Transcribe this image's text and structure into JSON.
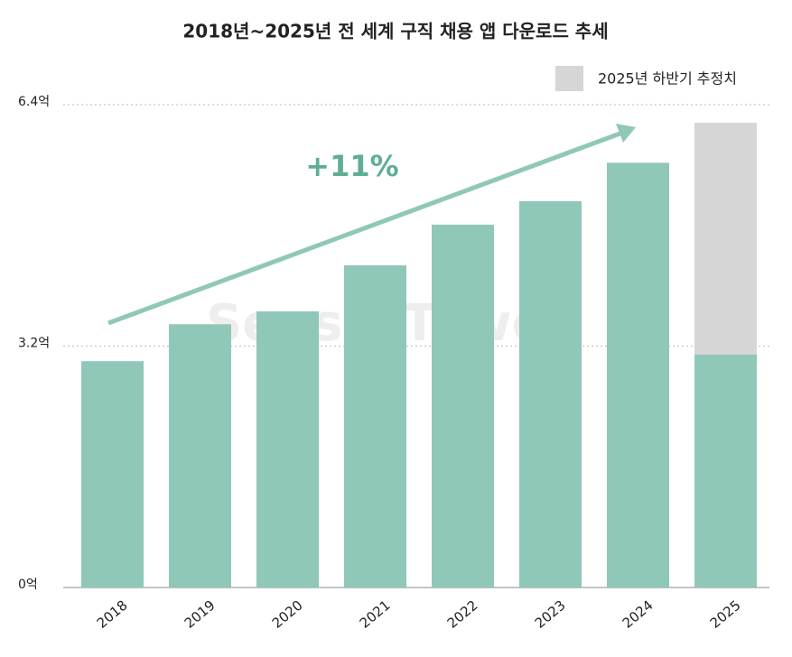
{
  "chart_data": {
    "type": "stacked_bar",
    "title": "2018년~2025년 전 세계 구직 채용 앱 다운로드 추세",
    "annotation": "+11%",
    "watermark": "SensorTower",
    "categories": [
      "2018",
      "2019",
      "2020",
      "2021",
      "2022",
      "2023",
      "2024",
      "2025"
    ],
    "series": [
      {
        "color": "#8fc7b8",
        "values": [
          3.0,
          3.49,
          3.66,
          4.27,
          4.81,
          5.12,
          5.63,
          3.09
        ]
      },
      {
        "name": "2025년 하반기 추정치",
        "color": "#d6d6d6",
        "values": [
          null,
          null,
          null,
          null,
          null,
          null,
          null,
          3.07
        ]
      }
    ],
    "ylim": [
      0,
      6.4
    ],
    "yticks": [
      {
        "value": 0,
        "label": "0억"
      },
      {
        "value": 3.2,
        "label": "3.2억"
      },
      {
        "value": 6.4,
        "label": "6.4억"
      }
    ],
    "grid": true,
    "legend": "top-right"
  }
}
